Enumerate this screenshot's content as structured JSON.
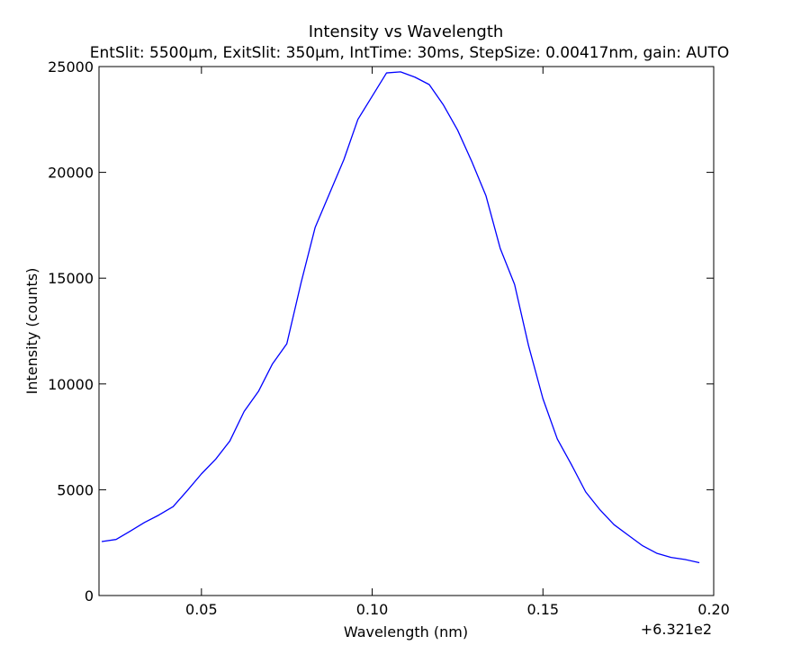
{
  "chart_data": {
    "type": "line",
    "title": "Intensity vs Wavelength",
    "subtitle": "EntSlit: 5500μm, ExitSlit: 350μm, IntTime: 30ms, StepSize: 0.00417nm, gain: AUTO",
    "xlabel": "Wavelength (nm)",
    "ylabel": "Intensity (counts)",
    "x_offset_label": "+6.321e2",
    "xlim": [
      0.02,
      0.2
    ],
    "ylim": [
      0,
      25000
    ],
    "xticks": [
      0.05,
      0.1,
      0.15,
      0.2
    ],
    "xtick_labels": [
      "0.05",
      "0.10",
      "0.15",
      "0.20"
    ],
    "yticks": [
      0,
      5000,
      10000,
      15000,
      20000,
      25000
    ],
    "ytick_labels": [
      "0",
      "5000",
      "10000",
      "15000",
      "20000",
      "25000"
    ],
    "grid": false,
    "series": [
      {
        "color": "#0000ff",
        "x": [
          0.0208,
          0.025,
          0.0292,
          0.0333,
          0.0375,
          0.0417,
          0.0458,
          0.05,
          0.0542,
          0.0583,
          0.0625,
          0.0667,
          0.0708,
          0.075,
          0.0792,
          0.0833,
          0.0875,
          0.0917,
          0.0958,
          0.1,
          0.1042,
          0.1083,
          0.1125,
          0.1167,
          0.1208,
          0.125,
          0.1292,
          0.1333,
          0.1375,
          0.1417,
          0.1458,
          0.15,
          0.1542,
          0.1583,
          0.1625,
          0.1667,
          0.1708,
          0.175,
          0.1792,
          0.1833,
          0.1875,
          0.1917,
          0.1958
        ],
        "y": [
          2550,
          2650,
          3050,
          3450,
          3800,
          4200,
          4950,
          5750,
          6450,
          7300,
          8700,
          9650,
          10950,
          11900,
          14800,
          17400,
          19000,
          20600,
          22500,
          23600,
          24700,
          24750,
          24500,
          24150,
          23200,
          22000,
          20500,
          18900,
          16400,
          14700,
          11800,
          9300,
          7400,
          6200,
          4900,
          4050,
          3350,
          2850,
          2350,
          2000,
          1800,
          1700,
          1550
        ]
      }
    ]
  }
}
